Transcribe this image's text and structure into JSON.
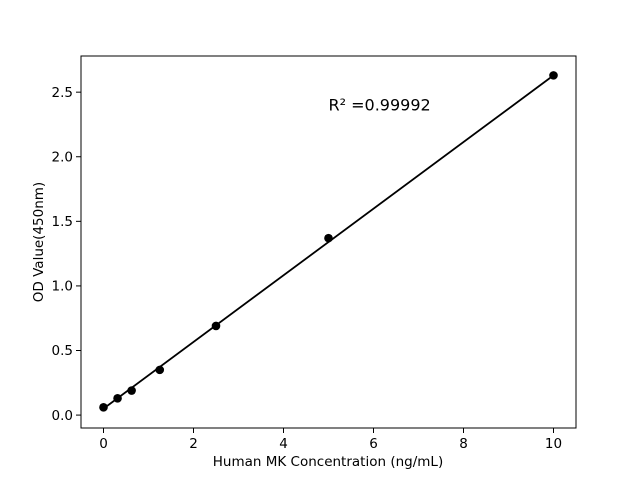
{
  "figure": {
    "background": "#ffffff"
  },
  "chart_data": {
    "type": "scatter",
    "title": "",
    "xlabel": "Human MK Concentration (ng/mL)",
    "ylabel": "OD Value(450nm)",
    "x": [
      0,
      0.3125,
      0.625,
      1.25,
      2.5,
      5,
      10
    ],
    "y": [
      0.06,
      0.13,
      0.19,
      0.35,
      0.69,
      1.37,
      2.63
    ],
    "fit_line": {
      "x1": 0,
      "y1": 0.05,
      "x2": 10,
      "y2": 2.63
    },
    "annotation": {
      "text": "R² =0.99992",
      "x": 5.0,
      "y": 2.36
    },
    "xlim": [
      -0.5,
      10.5
    ],
    "ylim": [
      -0.1,
      2.78
    ],
    "xticks": [
      "0",
      "2",
      "4",
      "6",
      "8",
      "10"
    ],
    "yticks": [
      "0.0",
      "0.5",
      "1.0",
      "1.5",
      "2.0",
      "2.5"
    ],
    "grid": false,
    "legend": "none",
    "colors": {
      "points": "#000000",
      "line": "#000000",
      "text": "#000000",
      "axes": "#000000",
      "background": "#ffffff"
    }
  }
}
